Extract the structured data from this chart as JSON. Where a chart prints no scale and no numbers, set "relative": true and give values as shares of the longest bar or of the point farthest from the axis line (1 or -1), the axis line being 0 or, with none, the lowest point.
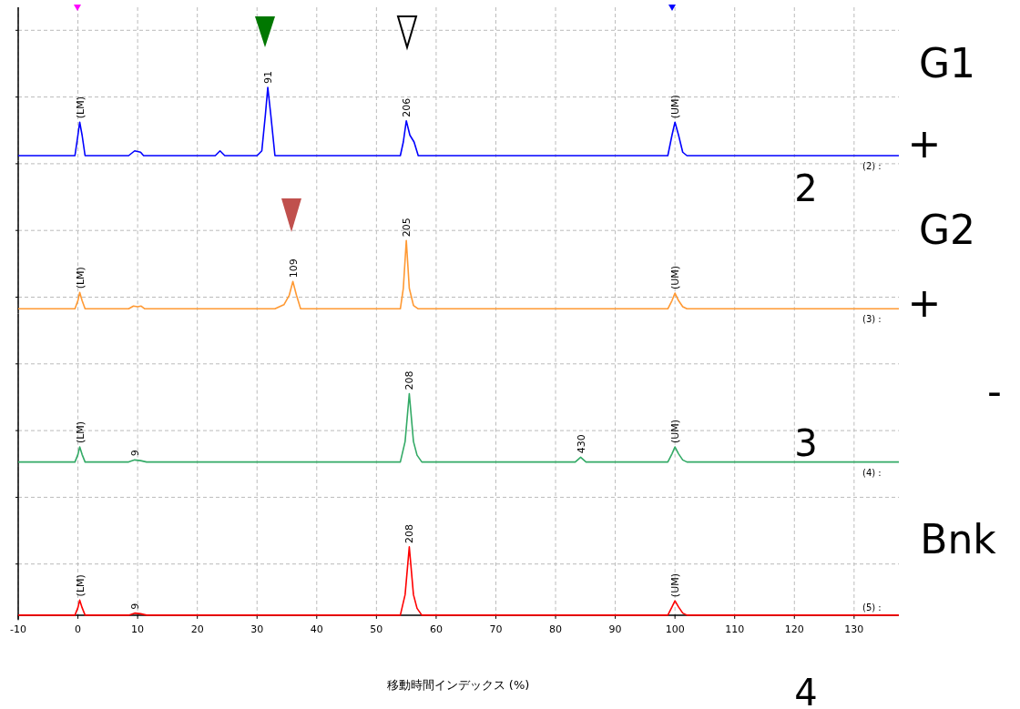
{
  "chart_data": [
    {
      "type": "line",
      "relative": true,
      "grid": true,
      "tick_labels": false,
      "xlim": [
        -10,
        137.5
      ],
      "xticks": [
        -10,
        0,
        10,
        20,
        30,
        40,
        50,
        60,
        70,
        80,
        90,
        100,
        110,
        120,
        130
      ],
      "series": [
        {
          "color": "#0000ff",
          "x": [
            -10,
            -0.5,
            0,
            0.3,
            0.7,
            1.2,
            8.5,
            9.5,
            10.5,
            11,
            23,
            23.8,
            24.6,
            30,
            30.8,
            31.4,
            31.8,
            32.3,
            33,
            54,
            54.5,
            55,
            55.6,
            56.3,
            57,
            98.8,
            99.5,
            100,
            100.6,
            101.3,
            102,
            137.5
          ],
          "values": [
            0,
            0,
            0.3,
            0.49,
            0.3,
            0,
            0,
            0.07,
            0.05,
            0,
            0,
            0.07,
            0,
            0,
            0.07,
            0.6,
            1,
            0.6,
            0,
            0,
            0.2,
            0.51,
            0.3,
            0.2,
            0,
            0,
            0.3,
            0.49,
            0.3,
            0.05,
            0,
            0
          ]
        }
      ],
      "annotations": [
        {
          "text": "(LM)",
          "x": 0.3,
          "y": 0.49
        },
        {
          "text": "91",
          "x": 31.8,
          "y": 1
        },
        {
          "text": "206",
          "x": 55,
          "y": 0.51
        },
        {
          "text": "(UM)",
          "x": 100,
          "y": 0.49
        },
        "(2) :",
        "G1",
        "+",
        "2"
      ]
    },
    {
      "type": "line",
      "relative": true,
      "grid": true,
      "tick_labels": false,
      "xlim": [
        -10,
        137.5
      ],
      "xticks": [
        -10,
        0,
        10,
        20,
        30,
        40,
        50,
        60,
        70,
        80,
        90,
        100,
        110,
        120,
        130
      ],
      "series": [
        {
          "color": "#ff9933",
          "x": [
            -10,
            -0.5,
            0,
            0.3,
            0.7,
            1.2,
            8.5,
            9.3,
            10,
            10.6,
            11.2,
            33,
            34.5,
            35.4,
            36,
            36.6,
            37.3,
            54,
            54.5,
            55,
            55.5,
            56.2,
            57,
            98.8,
            99.5,
            100,
            100.6,
            101.3,
            102,
            137.5
          ],
          "values": [
            0,
            0,
            0.12,
            0.24,
            0.12,
            0,
            0,
            0.04,
            0.03,
            0.04,
            0,
            0,
            0.06,
            0.2,
            0.4,
            0.2,
            0,
            0,
            0.3,
            1,
            0.3,
            0.05,
            0,
            0,
            0.12,
            0.23,
            0.12,
            0.03,
            0,
            0
          ]
        }
      ],
      "annotations": [
        {
          "text": "(LM)",
          "x": 0.3,
          "y": 0.24
        },
        {
          "text": "109",
          "x": 36,
          "y": 0.4
        },
        {
          "text": "205",
          "x": 55,
          "y": 1
        },
        {
          "text": "(UM)",
          "x": 100,
          "y": 0.23
        },
        "(3) :",
        "G2",
        "+"
      ]
    },
    {
      "type": "line",
      "relative": true,
      "grid": true,
      "tick_labels": false,
      "xlim": [
        -10,
        137.5
      ],
      "xticks": [
        -10,
        0,
        10,
        20,
        30,
        40,
        50,
        60,
        70,
        80,
        90,
        100,
        110,
        120,
        130
      ],
      "series": [
        {
          "color": "#33aa66",
          "x": [
            -10,
            -0.5,
            0,
            0.3,
            0.7,
            1.2,
            8.5,
            9.5,
            10.5,
            11.5,
            54,
            54.8,
            55.5,
            56.2,
            56.8,
            57.6,
            83.3,
            84.2,
            85.1,
            98.8,
            99.5,
            100,
            100.6,
            101.3,
            102,
            137.5
          ],
          "values": [
            0,
            0,
            0.11,
            0.22,
            0.11,
            0,
            0,
            0.03,
            0.02,
            0,
            0,
            0.3,
            1,
            0.3,
            0.1,
            0,
            0,
            0.07,
            0,
            0,
            0.12,
            0.22,
            0.12,
            0.03,
            0,
            0
          ]
        }
      ],
      "annotations": [
        {
          "text": "(LM)",
          "x": 0.3,
          "y": 0.22
        },
        {
          "text": "9",
          "x": 9.5,
          "y": 0.03
        },
        {
          "text": "208",
          "x": 55.5,
          "y": 1
        },
        {
          "text": "430",
          "x": 84.2,
          "y": 0.07
        },
        {
          "text": "(UM)",
          "x": 100,
          "y": 0.22
        },
        "(4) :",
        "-",
        "3"
      ]
    },
    {
      "type": "line",
      "relative": true,
      "grid": true,
      "tick_labels": "x",
      "xlim": [
        -10,
        137.5
      ],
      "xticks": [
        -10,
        0,
        10,
        20,
        30,
        40,
        50,
        60,
        70,
        80,
        90,
        100,
        110,
        120,
        130
      ],
      "xlabel": "移動時間インデックス (%)",
      "series": [
        {
          "color": "#ff0000",
          "x": [
            -10,
            -0.5,
            0,
            0.3,
            0.7,
            1.2,
            8.5,
            9.5,
            10.5,
            11.5,
            54,
            54.8,
            55.5,
            56.2,
            56.8,
            57.6,
            98.8,
            99.5,
            100,
            100.6,
            101.3,
            102,
            137.5
          ],
          "values": [
            0,
            0,
            0.11,
            0.22,
            0.11,
            0,
            0,
            0.03,
            0.02,
            0,
            0,
            0.3,
            1,
            0.3,
            0.1,
            0,
            0,
            0.12,
            0.21,
            0.12,
            0.03,
            0,
            0
          ]
        }
      ],
      "annotations": [
        {
          "text": "(LM)",
          "x": 0.3,
          "y": 0.22
        },
        {
          "text": "9",
          "x": 9.5,
          "y": 0.03
        },
        {
          "text": "208",
          "x": 55.5,
          "y": 1
        },
        {
          "text": "(UM)",
          "x": 100,
          "y": 0.21
        },
        "(5) :",
        "Bnk",
        "4"
      ]
    }
  ]
}
